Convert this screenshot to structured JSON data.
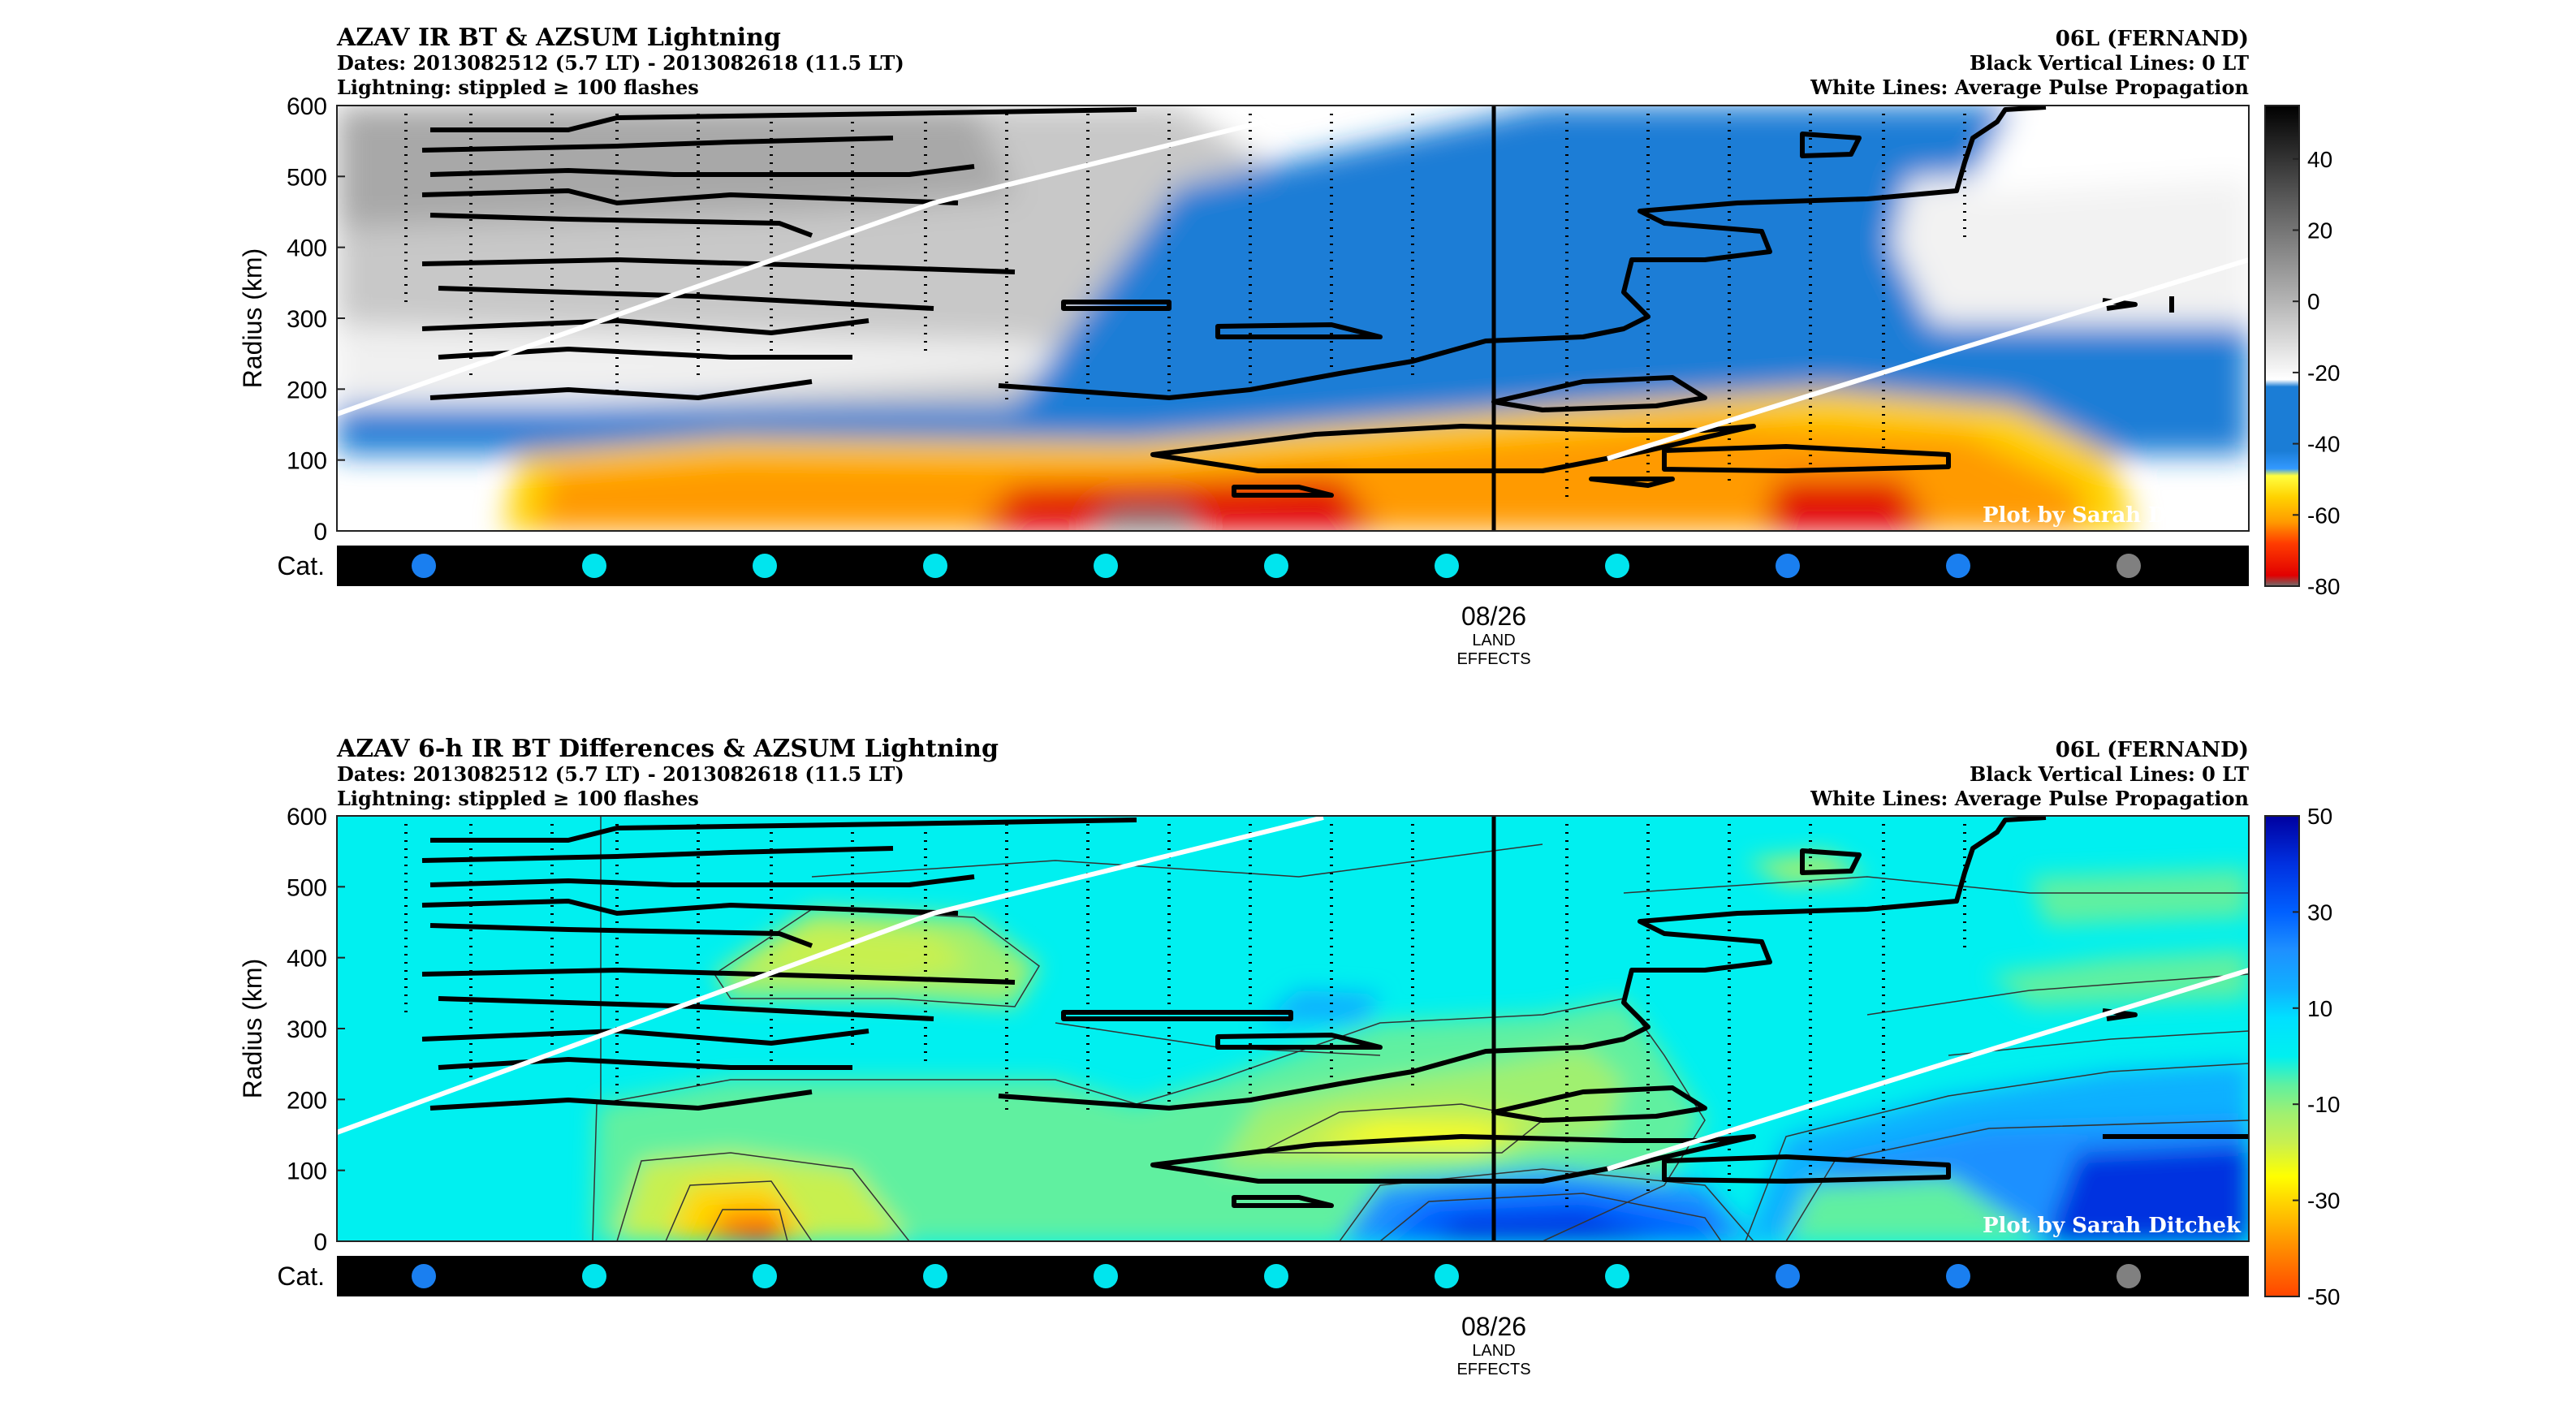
{
  "chart_data": [
    {
      "type": "heatmap",
      "title": "AZAV IR BT & AZSUM Lightning",
      "subtitle_dates": "Dates: 2013082512 (5.7 LT) - 2013082618 (11.5 LT)",
      "subtitle_lightning": "Lightning: stippled ≥ 100 flashes",
      "storm": "06L (FERNAND)",
      "note_black": "Black Vertical Lines: 0 LT",
      "note_white": "White Lines: Average Pulse Propagation",
      "credit": "Plot by Sarah Ditchek",
      "ylabel": "Radius (km)",
      "yticks": [
        "0",
        "100",
        "200",
        "300",
        "400",
        "500",
        "600"
      ],
      "ylim": [
        0,
        600
      ],
      "xtick_date": "08/26",
      "xtick_note": [
        "LAND",
        "EFFECTS"
      ],
      "cat_label": "Cat.",
      "colorbar": {
        "ticks": [
          "-80",
          "-60",
          "-40",
          "-20",
          "0",
          "20",
          "40"
        ],
        "range": [
          -80,
          55
        ],
        "stops": [
          {
            "v": -80,
            "c": "#6e6e6e"
          },
          {
            "v": -77,
            "c": "#e10000"
          },
          {
            "v": -68,
            "c": "#ff3c00"
          },
          {
            "v": -62,
            "c": "#ff9a00"
          },
          {
            "v": -55,
            "c": "#ffd200"
          },
          {
            "v": -49,
            "c": "#ffff40"
          },
          {
            "v": -47,
            "c": "#3399ff"
          },
          {
            "v": -42,
            "c": "#1b7dd6"
          },
          {
            "v": -24,
            "c": "#1b7dd6"
          },
          {
            "v": -22,
            "c": "#ffffff"
          },
          {
            "v": 0,
            "c": "#b4b4b4"
          },
          {
            "v": 30,
            "c": "#555555"
          },
          {
            "v": 55,
            "c": "#000000"
          }
        ]
      },
      "cat_dots": [
        "#1a7ff0",
        "#00e5ee",
        "#00e5ee",
        "#00e5ee",
        "#00e5ee",
        "#00e5ee",
        "#00e5ee",
        "#00e5ee",
        "#1a7ff0",
        "#1a7ff0",
        "#808080"
      ]
    },
    {
      "type": "heatmap",
      "title": "AZAV 6-h IR BT Differences & AZSUM Lightning",
      "subtitle_dates": "Dates: 2013082512 (5.7 LT) - 2013082618 (11.5 LT)",
      "subtitle_lightning": "Lightning: stippled ≥ 100 flashes",
      "storm": "06L (FERNAND)",
      "note_black": "Black Vertical Lines: 0 LT",
      "note_white": "White Lines: Average Pulse Propagation",
      "credit": "Plot by Sarah Ditchek",
      "ylabel": "Radius (km)",
      "yticks": [
        "0",
        "100",
        "200",
        "300",
        "400",
        "500",
        "600"
      ],
      "ylim": [
        0,
        600
      ],
      "xtick_date": "08/26",
      "xtick_note": [
        "LAND",
        "EFFECTS"
      ],
      "cat_label": "Cat.",
      "colorbar": {
        "ticks": [
          "-50",
          "-30",
          "-10",
          "10",
          "30",
          "50"
        ],
        "range": [
          -50,
          50
        ],
        "stops": [
          {
            "v": -50,
            "c": "#ff4500"
          },
          {
            "v": -40,
            "c": "#ff8c00"
          },
          {
            "v": -30,
            "c": "#ffd700"
          },
          {
            "v": -25,
            "c": "#ffff00"
          },
          {
            "v": -18,
            "c": "#c8f050"
          },
          {
            "v": -12,
            "c": "#a0f070"
          },
          {
            "v": -6,
            "c": "#60f0a0"
          },
          {
            "v": 0,
            "c": "#00f0f0"
          },
          {
            "v": 8,
            "c": "#00e0ff"
          },
          {
            "v": 14,
            "c": "#10b0ff"
          },
          {
            "v": 22,
            "c": "#1e90ff"
          },
          {
            "v": 30,
            "c": "#0060ff"
          },
          {
            "v": 40,
            "c": "#0030e0"
          },
          {
            "v": 50,
            "c": "#0000a0"
          }
        ]
      },
      "cat_dots": [
        "#1a7ff0",
        "#00e5ee",
        "#00e5ee",
        "#00e5ee",
        "#00e5ee",
        "#00e5ee",
        "#00e5ee",
        "#00e5ee",
        "#1a7ff0",
        "#1a7ff0",
        "#808080"
      ]
    }
  ]
}
